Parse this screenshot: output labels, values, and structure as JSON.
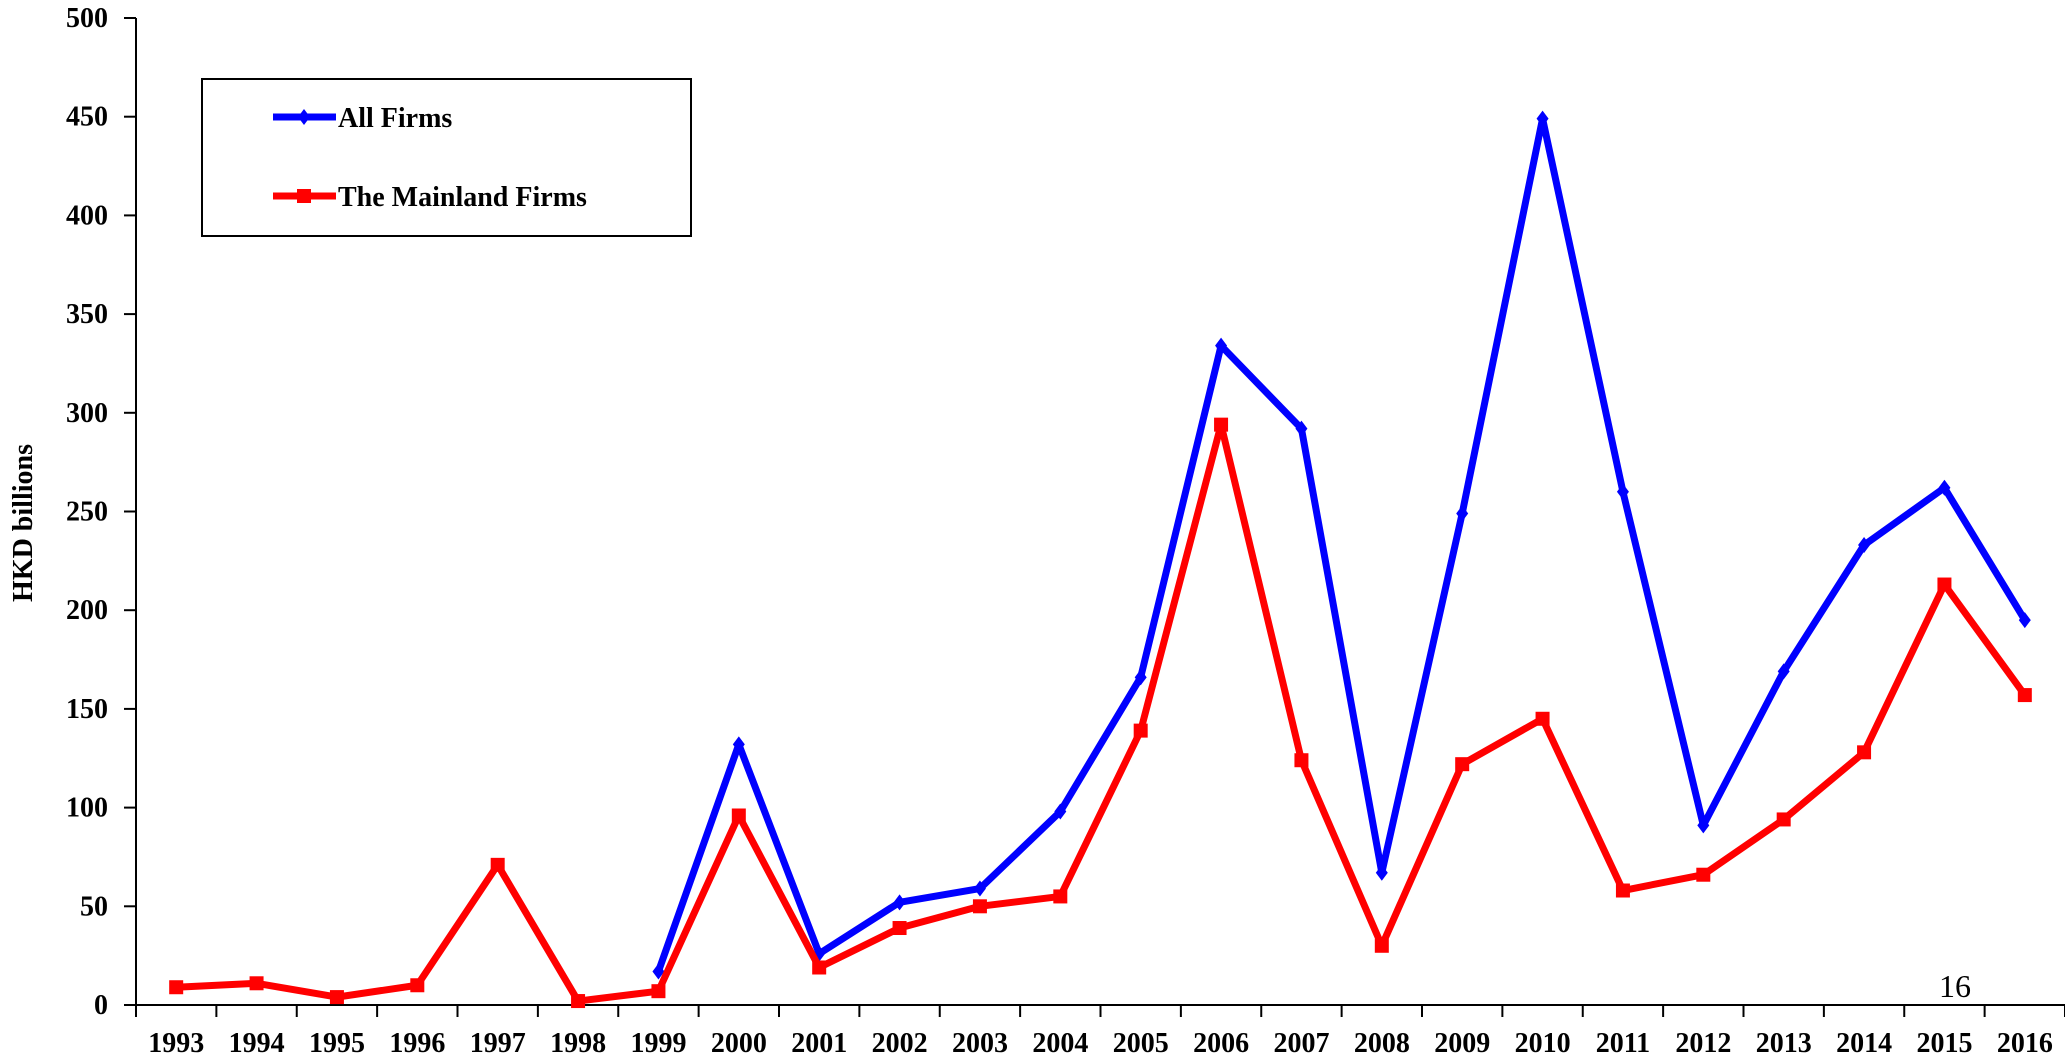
{
  "chart_data": {
    "type": "line",
    "title": "",
    "xlabel": "",
    "ylabel": "HKD billions",
    "ylim": [
      0,
      500
    ],
    "yticks": [
      0,
      50,
      100,
      150,
      200,
      250,
      300,
      350,
      400,
      450,
      500
    ],
    "grid": false,
    "legend_position": "top-left",
    "categories": [
      "1993",
      "1994",
      "1995",
      "1996",
      "1997",
      "1998",
      "1999",
      "2000",
      "2001",
      "2002",
      "2003",
      "2004",
      "2005",
      "2006",
      "2007",
      "2008",
      "2009",
      "2010",
      "2011",
      "2012",
      "2013",
      "2014",
      "2015",
      "2016"
    ],
    "series": [
      {
        "name": "All Firms",
        "color": "#0000ff",
        "marker": "diamond",
        "values": [
          null,
          null,
          null,
          null,
          null,
          null,
          17,
          132,
          26,
          52,
          59,
          98,
          166,
          334,
          292,
          67,
          249,
          449,
          260,
          91,
          169,
          233,
          262,
          195
        ]
      },
      {
        "name": "The Mainland Firms",
        "color": "#ff0000",
        "marker": "square",
        "values": [
          9,
          11,
          4,
          10,
          71,
          2,
          7,
          96,
          19,
          39,
          50,
          55,
          139,
          294,
          124,
          30,
          122,
          145,
          58,
          66,
          94,
          128,
          213,
          157
        ]
      }
    ],
    "page_number": "16"
  }
}
